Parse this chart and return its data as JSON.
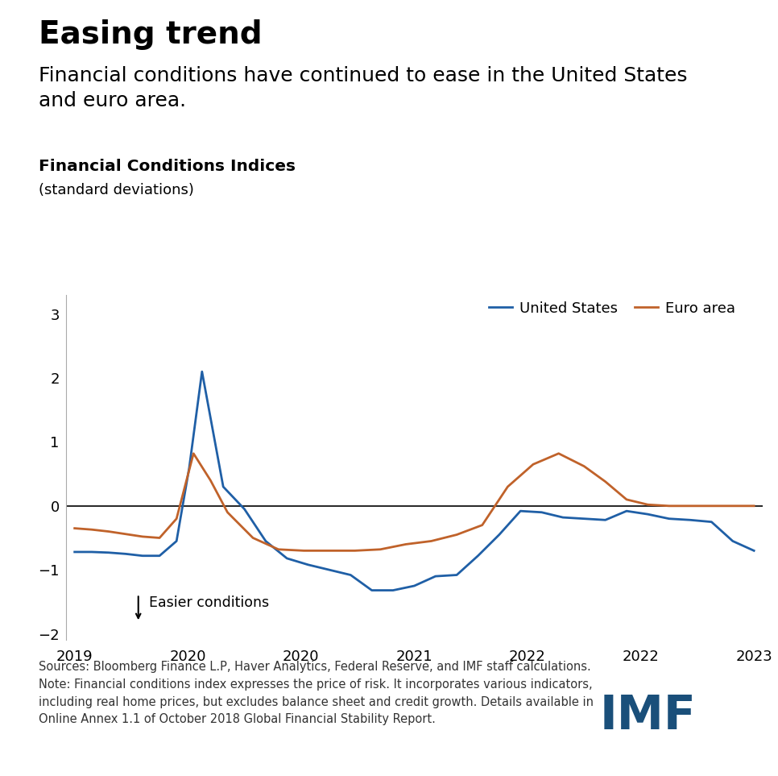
{
  "title": "Easing trend",
  "subtitle": "Financial conditions have continued to ease in the United States\nand euro area.",
  "chart_title": "Financial Conditions Indices",
  "chart_subtitle": "(standard deviations)",
  "us_label": "United States",
  "euro_label": "Euro area",
  "us_color": "#1f5fa6",
  "euro_color": "#c0622a",
  "zero_line_color": "#000000",
  "background_color": "#ffffff",
  "annotation_text": "Easier conditions",
  "sources_text": "Sources: Bloomberg Finance L.P, Haver Analytics, Federal Reserve, and IMF staff calculations.\nNote: Financial conditions index expresses the price of risk. It incorporates various indicators,\nincluding real home prices, but excludes balance sheet and credit growth. Details available in\nOnline Annex 1.1 of October 2018 Global Financial Stability Report.",
  "imf_color": "#1a4f7a",
  "ylim": [
    -2.1,
    3.3
  ],
  "yticks": [
    -2,
    -1,
    0,
    1,
    2,
    3
  ],
  "x_tick_positions": [
    0,
    2.667,
    5.333,
    8.0,
    10.667,
    13.333,
    16.0
  ],
  "x_labels": [
    "2019",
    "2020",
    "2020",
    "2021",
    "2022",
    "2022",
    "2023"
  ],
  "us_t": [
    0.0,
    0.4,
    0.8,
    1.2,
    1.6,
    2.0,
    2.4,
    2.7,
    3.0,
    3.5,
    4.0,
    4.5,
    5.0,
    5.5,
    6.0,
    6.5,
    7.0,
    7.5,
    8.0,
    8.5,
    9.0,
    9.5,
    10.0,
    10.5,
    11.0,
    11.5,
    12.0,
    12.5,
    13.0,
    13.5,
    14.0,
    14.5,
    15.0,
    15.5,
    16.0
  ],
  "us_v": [
    -0.72,
    -0.72,
    -0.73,
    -0.75,
    -0.78,
    -0.78,
    -0.55,
    0.6,
    2.1,
    0.3,
    -0.05,
    -0.55,
    -0.82,
    -0.92,
    -1.0,
    -1.08,
    -1.32,
    -1.32,
    -1.25,
    -1.1,
    -1.08,
    -0.78,
    -0.45,
    -0.08,
    -0.1,
    -0.18,
    -0.2,
    -0.22,
    -0.08,
    -0.13,
    -0.2,
    -0.22,
    -0.25,
    -0.55,
    -0.7
  ],
  "euro_t": [
    0.0,
    0.4,
    0.8,
    1.2,
    1.6,
    2.0,
    2.4,
    2.8,
    3.2,
    3.6,
    4.2,
    4.8,
    5.4,
    6.0,
    6.6,
    7.2,
    7.8,
    8.4,
    9.0,
    9.6,
    10.2,
    10.8,
    11.4,
    12.0,
    12.5,
    13.0,
    13.5,
    14.0,
    14.5,
    15.0,
    15.5,
    16.0
  ],
  "euro_v": [
    -0.35,
    -0.37,
    -0.4,
    -0.44,
    -0.48,
    -0.5,
    -0.2,
    0.82,
    0.4,
    -0.1,
    -0.5,
    -0.68,
    -0.7,
    -0.7,
    -0.7,
    -0.68,
    -0.6,
    -0.55,
    -0.45,
    -0.3,
    0.3,
    0.65,
    0.82,
    0.62,
    0.38,
    0.1,
    0.02,
    0.0,
    0.0,
    0.0,
    0.0,
    0.0
  ]
}
